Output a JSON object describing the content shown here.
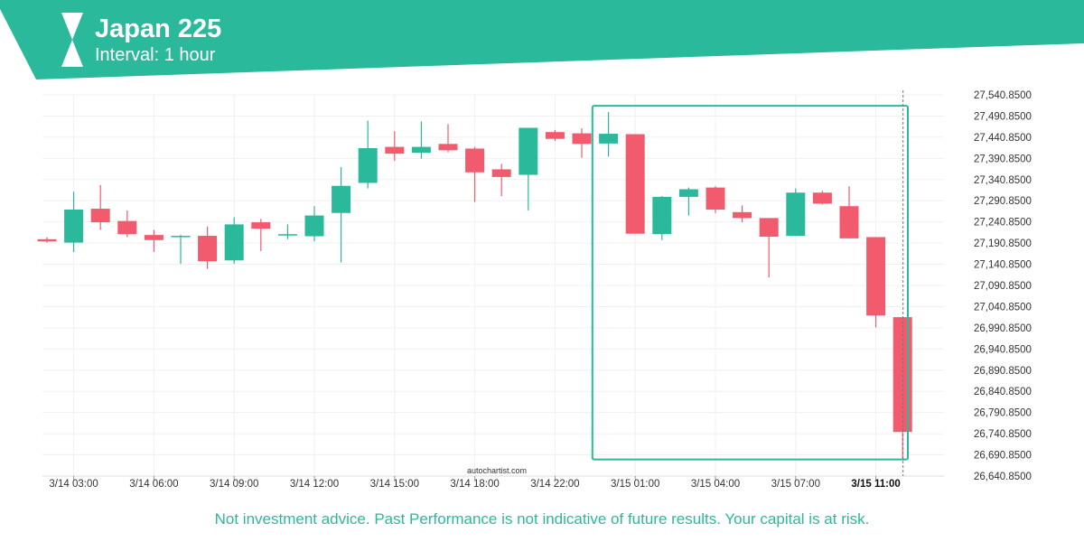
{
  "header": {
    "title": "Japan 225",
    "subtitle": "Interval: 1 hour",
    "color": "#2bb99b"
  },
  "watermark": "autochartist.com",
  "disclaimer": "Not investment advice. Past Performance is not indicative of future results. Your capital is at risk.",
  "colors": {
    "up": "#2bb99b",
    "down": "#f25a6e",
    "grid": "#f0f0f0",
    "axis_text": "#333333",
    "highlight_box": "#2bb99b"
  },
  "chart_data": {
    "type": "candlestick",
    "ylim": [
      26640.85,
      27540.85
    ],
    "y_ticks": [
      "27,540.8500",
      "27,490.8500",
      "27,440.8500",
      "27,390.8500",
      "27,340.8500",
      "27,290.8500",
      "27,240.8500",
      "27,190.8500",
      "27,140.8500",
      "27,090.8500",
      "27,040.8500",
      "26,990.8500",
      "26,940.8500",
      "26,890.8500",
      "26,840.8500",
      "26,790.8500",
      "26,740.8500",
      "26,690.8500",
      "26,640.8500"
    ],
    "x_ticks": [
      {
        "index": 1,
        "label": "3/14 03:00"
      },
      {
        "index": 4,
        "label": "3/14 06:00"
      },
      {
        "index": 7,
        "label": "3/14 09:00"
      },
      {
        "index": 10,
        "label": "3/14 12:00"
      },
      {
        "index": 13,
        "label": "3/14 15:00"
      },
      {
        "index": 16,
        "label": "3/14 18:00"
      },
      {
        "index": 19,
        "label": "3/14 22:00"
      },
      {
        "index": 22,
        "label": "3/15 01:00"
      },
      {
        "index": 25,
        "label": "3/15 04:00"
      },
      {
        "index": 28,
        "label": "3/15 07:00"
      },
      {
        "index": 31,
        "label": "3/15 11:00",
        "highlight": true
      }
    ],
    "candles": [
      {
        "o": 27200,
        "h": 27205,
        "l": 27192,
        "c": 27195
      },
      {
        "o": 27192,
        "h": 27312,
        "l": 27170,
        "c": 27270
      },
      {
        "o": 27272,
        "h": 27328,
        "l": 27222,
        "c": 27240
      },
      {
        "o": 27243,
        "h": 27268,
        "l": 27205,
        "c": 27212
      },
      {
        "o": 27210,
        "h": 27222,
        "l": 27170,
        "c": 27198
      },
      {
        "o": 27208,
        "h": 27210,
        "l": 27142,
        "c": 27208
      },
      {
        "o": 27208,
        "h": 27230,
        "l": 27130,
        "c": 27148
      },
      {
        "o": 27150,
        "h": 27252,
        "l": 27142,
        "c": 27235
      },
      {
        "o": 27240,
        "h": 27248,
        "l": 27172,
        "c": 27225
      },
      {
        "o": 27212,
        "h": 27235,
        "l": 27200,
        "c": 27212
      },
      {
        "o": 27207,
        "h": 27278,
        "l": 27195,
        "c": 27256
      },
      {
        "o": 27262,
        "h": 27370,
        "l": 27145,
        "c": 27326
      },
      {
        "o": 27333,
        "h": 27480,
        "l": 27320,
        "c": 27415
      },
      {
        "o": 27418,
        "h": 27455,
        "l": 27385,
        "c": 27402
      },
      {
        "o": 27404,
        "h": 27478,
        "l": 27390,
        "c": 27418
      },
      {
        "o": 27425,
        "h": 27472,
        "l": 27405,
        "c": 27410
      },
      {
        "o": 27414,
        "h": 27418,
        "l": 27288,
        "c": 27358
      },
      {
        "o": 27365,
        "h": 27378,
        "l": 27302,
        "c": 27347
      },
      {
        "o": 27352,
        "h": 27462,
        "l": 27268,
        "c": 27463
      },
      {
        "o": 27453,
        "h": 27458,
        "l": 27432,
        "c": 27437
      },
      {
        "o": 27450,
        "h": 27462,
        "l": 27392,
        "c": 27425
      },
      {
        "o": 27426,
        "h": 27500,
        "l": 27395,
        "c": 27449
      },
      {
        "o": 27448,
        "h": 27448,
        "l": 27213,
        "c": 27213
      },
      {
        "o": 27212,
        "h": 27302,
        "l": 27198,
        "c": 27300
      },
      {
        "o": 27300,
        "h": 27322,
        "l": 27256,
        "c": 27318
      },
      {
        "o": 27322,
        "h": 27325,
        "l": 27262,
        "c": 27270
      },
      {
        "o": 27264,
        "h": 27280,
        "l": 27240,
        "c": 27250
      },
      {
        "o": 27250,
        "h": 27250,
        "l": 27110,
        "c": 27206
      },
      {
        "o": 27208,
        "h": 27320,
        "l": 27208,
        "c": 27310
      },
      {
        "o": 27310,
        "h": 27314,
        "l": 27282,
        "c": 27284
      },
      {
        "o": 27278,
        "h": 27325,
        "l": 27202,
        "c": 27202
      },
      {
        "o": 27205,
        "h": 27205,
        "l": 26992,
        "c": 27020
      },
      {
        "o": 27016,
        "h": 27016,
        "l": 26682,
        "c": 26745
      }
    ],
    "highlight_box": {
      "start_index": 20.5,
      "end_index": 32.5,
      "top": 27515,
      "bottom": 26680
    },
    "current_marker_index": 32
  }
}
